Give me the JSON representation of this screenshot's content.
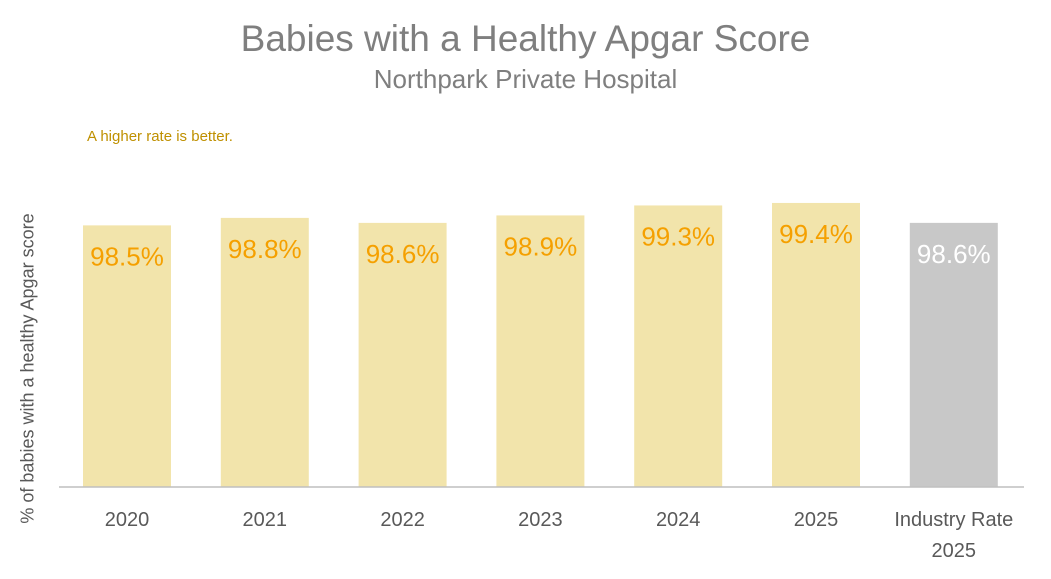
{
  "chart_data": {
    "type": "bar",
    "title": "Babies with a Healthy Apgar Score",
    "subtitle": "Northpark Private Hospital",
    "annotation": "A higher rate is better.",
    "ylabel": "% of babies with a healthy Apgar score",
    "categories": [
      [
        "2020"
      ],
      [
        "2021"
      ],
      [
        "2022"
      ],
      [
        "2023"
      ],
      [
        "2024"
      ],
      [
        "2025"
      ],
      [
        "Industry Rate",
        "2025"
      ]
    ],
    "values": [
      98.5,
      98.8,
      98.6,
      98.9,
      99.3,
      99.4,
      98.6
    ],
    "value_labels": [
      "98.5%",
      "98.8%",
      "98.6%",
      "98.9%",
      "99.3%",
      "99.4%",
      "98.6%"
    ],
    "bar_colors": [
      "#f2e4ab",
      "#f2e4ab",
      "#f2e4ab",
      "#f2e4ab",
      "#f2e4ab",
      "#f2e4ab",
      "#c8c8c8"
    ],
    "label_colors": [
      "#f5a000",
      "#f5a000",
      "#f5a000",
      "#f5a000",
      "#f5a000",
      "#f5a000",
      "#ffffff"
    ],
    "ylim": [
      88,
      100
    ],
    "grid": false,
    "legend": "none"
  }
}
